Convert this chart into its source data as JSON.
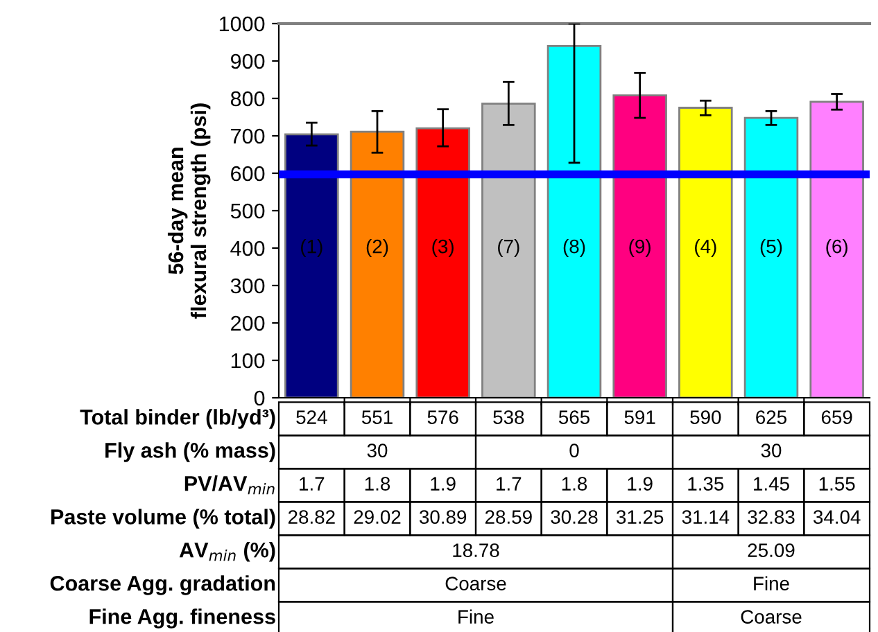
{
  "chart_data": {
    "type": "bar",
    "ylabel": "56-day mean\nflexural strength (psi)",
    "categories": [
      "(1)",
      "(2)",
      "(3)",
      "(7)",
      "(8)",
      "(9)",
      "(4)",
      "(5)",
      "(6)"
    ],
    "values": [
      704,
      711,
      720,
      786,
      940,
      808,
      775,
      748,
      791
    ],
    "colors": [
      "#000080",
      "#ff8000",
      "#ff0000",
      "#c0c0c0",
      "#00ffff",
      "#ff0080",
      "#ffff00",
      "#00ffff",
      "#ff80ff"
    ],
    "errors": [
      [
        674,
        735
      ],
      [
        655,
        766
      ],
      [
        672,
        771
      ],
      [
        729,
        844
      ],
      [
        628,
        1000
      ],
      [
        748,
        868
      ],
      [
        755,
        794
      ],
      [
        729,
        766
      ],
      [
        770,
        812
      ]
    ],
    "ylim": [
      0,
      1000
    ],
    "yticks": [
      0,
      100,
      200,
      300,
      400,
      500,
      600,
      700,
      800,
      900,
      1000
    ],
    "ref_lines": [
      {
        "axis": "y",
        "value": 597,
        "color": "#0000ff"
      }
    ],
    "annotations": [
      "Total binder (lb/yd³)",
      "524",
      "551",
      "576",
      "538",
      "565",
      "591",
      "590",
      "625",
      "659",
      "Fly ash (% mass)",
      "30",
      "0",
      "30",
      "PV/AV$_{min}$",
      "1.7",
      "1.8",
      "1.9",
      "1.7",
      "1.8",
      "1.9",
      "1.35",
      "1.45",
      "1.55",
      "Paste volume (% total)",
      "28.82",
      "29.02",
      "30.89",
      "28.59",
      "30.28",
      "31.25",
      "31.14",
      "32.83",
      "34.04",
      "AV$_{min}$ (%)",
      "18.78",
      "25.09",
      "Coarse Agg. gradation",
      "Coarse",
      "Fine",
      "Fine Agg. fineness",
      "Fine",
      "Coarse"
    ],
    "grid": false,
    "legend": false
  }
}
